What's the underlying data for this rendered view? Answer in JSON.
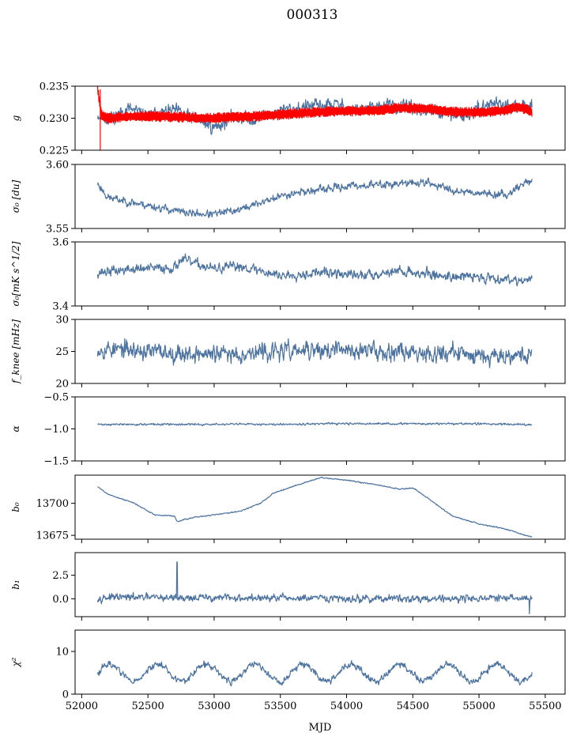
{
  "figure": {
    "title": "000313",
    "xlabel": "MJD",
    "xlim": [
      51950,
      55650
    ],
    "xticks": [
      52000,
      52500,
      53000,
      53500,
      54000,
      54500,
      55000,
      55500
    ],
    "series_color": "#4c72a0",
    "overlay_color": "#ff0000"
  },
  "chart_data": [
    {
      "type": "line",
      "ylabel": "g",
      "ylim": [
        0.225,
        0.235
      ],
      "yticks": [
        0.225,
        0.23,
        0.235
      ],
      "ytick_labels": [
        "0.225",
        "0.230",
        "0.235"
      ],
      "series": [
        {
          "name": "g",
          "x": [
            52120,
            52200,
            52350,
            52500,
            52700,
            52900,
            53000,
            53150,
            53300,
            53500,
            53700,
            53900,
            54100,
            54300,
            54500,
            54700,
            54900,
            55100,
            55300,
            55400
          ],
          "y": [
            0.2305,
            0.2298,
            0.2315,
            0.2303,
            0.2312,
            0.2295,
            0.2285,
            0.2302,
            0.2298,
            0.2312,
            0.2318,
            0.2322,
            0.2312,
            0.232,
            0.2315,
            0.2308,
            0.2302,
            0.2325,
            0.2315,
            0.2322
          ],
          "noise": 0.0012,
          "seed": 11
        },
        {
          "name": "g (fit)",
          "overlay": true,
          "band": 0.0008,
          "x": [
            52120,
            52150,
            52200,
            52400,
            52600,
            52800,
            53000,
            53200,
            53400,
            53600,
            53800,
            54000,
            54200,
            54400,
            54600,
            54800,
            55000,
            55200,
            55300,
            55400
          ],
          "y": [
            0.2345,
            0.2305,
            0.23,
            0.2303,
            0.2303,
            0.2301,
            0.23,
            0.2302,
            0.2304,
            0.2307,
            0.231,
            0.2311,
            0.2312,
            0.2316,
            0.2315,
            0.231,
            0.2309,
            0.2312,
            0.2318,
            0.231
          ],
          "spike": {
            "x": 52140,
            "y_low": 0.225
          }
        }
      ]
    },
    {
      "type": "line",
      "ylabel": "σ₀ [du]",
      "ylim": [
        3.55,
        3.6
      ],
      "yticks": [
        3.55,
        3.6
      ],
      "ytick_labels": [
        "3.55",
        "3.60"
      ],
      "series": [
        {
          "name": "sigma0_du",
          "x": [
            52120,
            52200,
            52500,
            52800,
            53000,
            53200,
            53400,
            53600,
            53800,
            54000,
            54200,
            54400,
            54600,
            54800,
            55000,
            55200,
            55300,
            55400
          ],
          "y": [
            3.585,
            3.574,
            3.568,
            3.562,
            3.561,
            3.565,
            3.572,
            3.578,
            3.58,
            3.583,
            3.584,
            3.585,
            3.586,
            3.58,
            3.578,
            3.576,
            3.583,
            3.588
          ],
          "noise": 0.0035,
          "seed": 23
        }
      ]
    },
    {
      "type": "line",
      "ylabel": "σ₀[mK s^1/2]",
      "ylim": [
        3.4,
        3.6
      ],
      "yticks": [
        3.4,
        3.6
      ],
      "ytick_labels": [
        "3.4",
        "3.6"
      ],
      "series": [
        {
          "name": "sigma0_mK",
          "x": [
            52120,
            52400,
            52700,
            52750,
            53000,
            53200,
            53500,
            53800,
            54100,
            54400,
            54700,
            55000,
            55400
          ],
          "y": [
            3.505,
            3.515,
            3.52,
            3.545,
            3.515,
            3.525,
            3.495,
            3.505,
            3.495,
            3.51,
            3.495,
            3.49,
            3.48
          ],
          "noise": 0.018,
          "seed": 37
        }
      ]
    },
    {
      "type": "line",
      "ylabel": "f_knee [mHz]",
      "ylim": [
        20,
        30
      ],
      "yticks": [
        20,
        25,
        30
      ],
      "ytick_labels": [
        "20",
        "25",
        "30"
      ],
      "series": [
        {
          "name": "fknee",
          "x": [
            52120,
            52500,
            53000,
            53500,
            54000,
            54500,
            55000,
            55400
          ],
          "y": [
            25.5,
            25.0,
            24.5,
            25.0,
            25.2,
            25.0,
            24.5,
            24.5
          ],
          "noise": 1.6,
          "seed": 53
        }
      ]
    },
    {
      "type": "line",
      "ylabel": "α",
      "ylim": [
        -1.5,
        -0.5
      ],
      "yticks": [
        -1.5,
        -1.0,
        -0.5
      ],
      "ytick_labels": [
        "−1.5",
        "−1.0",
        "−0.5"
      ],
      "series": [
        {
          "name": "alpha",
          "x": [
            52120,
            53000,
            54000,
            55000,
            55400
          ],
          "y": [
            -0.93,
            -0.93,
            -0.92,
            -0.92,
            -0.93
          ],
          "noise": 0.018,
          "seed": 71
        }
      ]
    },
    {
      "type": "line",
      "ylabel": "b₀",
      "ylim": [
        13672,
        13722
      ],
      "yticks": [
        13675,
        13700
      ],
      "ytick_labels": [
        "13675",
        "13700"
      ],
      "series": [
        {
          "name": "b0",
          "x": [
            52120,
            52200,
            52400,
            52550,
            52700,
            52720,
            52850,
            53000,
            53200,
            53350,
            53450,
            53500,
            53650,
            53800,
            54000,
            54200,
            54400,
            54500,
            54600,
            54800,
            55000,
            55200,
            55350,
            55400
          ],
          "y": [
            13713,
            13707,
            13700,
            13691,
            13690,
            13686,
            13689,
            13691,
            13694,
            13700,
            13708,
            13710,
            13715,
            13720,
            13718,
            13715,
            13711,
            13712,
            13705,
            13690,
            13684,
            13680,
            13675,
            13674
          ],
          "noise": 0.5,
          "seed": 89
        }
      ]
    },
    {
      "type": "line",
      "ylabel": "b₁",
      "ylim": [
        -1.9,
        4.9
      ],
      "yticks": [
        0.0,
        2.5
      ],
      "ytick_labels": [
        "0.0",
        "2.5"
      ],
      "series": [
        {
          "name": "b1",
          "x": [
            52120,
            53000,
            54000,
            55000,
            55400
          ],
          "y": [
            0.15,
            0.1,
            0.0,
            0.05,
            0.05
          ],
          "noise": 0.45,
          "seed": 97,
          "spikes": [
            {
              "x": 52720,
              "y": 3.9
            },
            {
              "x": 55380,
              "y": -1.6
            }
          ]
        }
      ]
    },
    {
      "type": "line",
      "ylabel": "χ²",
      "ylim": [
        0,
        15
      ],
      "yticks": [
        0,
        10
      ],
      "ytick_labels": [
        "0",
        "10"
      ],
      "series": [
        {
          "name": "chi2",
          "x": [
            52120,
            55400
          ],
          "y": [
            5.0,
            5.0
          ],
          "noise": 0.9,
          "seed": 113,
          "periodic": {
            "amplitude": 2.0,
            "period": 365
          }
        }
      ]
    }
  ]
}
